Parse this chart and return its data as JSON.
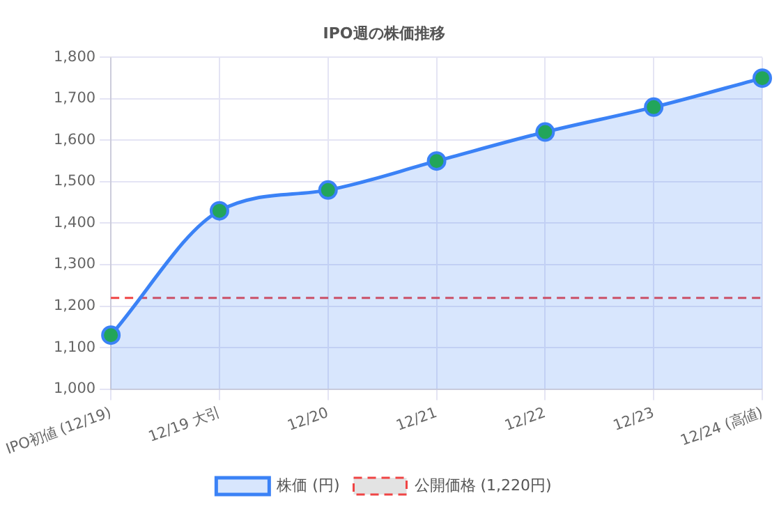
{
  "chart_data": {
    "type": "area",
    "title": "IPO週の株価推移",
    "categories": [
      "IPO初値 (12/19)",
      "12/19 大引",
      "12/20",
      "12/21",
      "12/22",
      "12/23",
      "12/24 (高値)"
    ],
    "series": [
      {
        "name": "株価 (円)",
        "color": "#3b82f6",
        "values": [
          1130,
          1430,
          1480,
          1550,
          1620,
          1680,
          1750
        ]
      }
    ],
    "ylim": [
      1000,
      1800
    ],
    "yticks": [
      {
        "value": 1000,
        "label": "1,000"
      },
      {
        "value": 1100,
        "label": "1,100"
      },
      {
        "value": 1200,
        "label": "1,200"
      },
      {
        "value": 1300,
        "label": "1,300"
      },
      {
        "value": 1400,
        "label": "1,400"
      },
      {
        "value": 1500,
        "label": "1,500"
      },
      {
        "value": 1600,
        "label": "1,600"
      },
      {
        "value": 1700,
        "label": "1,700"
      },
      {
        "value": 1800,
        "label": "1,800"
      }
    ],
    "ref_lines": [
      {
        "axis": "y",
        "value": 1220,
        "label": "公開価格 (1,220円)",
        "color": "#ef4444",
        "line_style": "dashed"
      }
    ],
    "grid": true,
    "legend": "bottom",
    "marker": "circle",
    "line_style": "solid"
  }
}
